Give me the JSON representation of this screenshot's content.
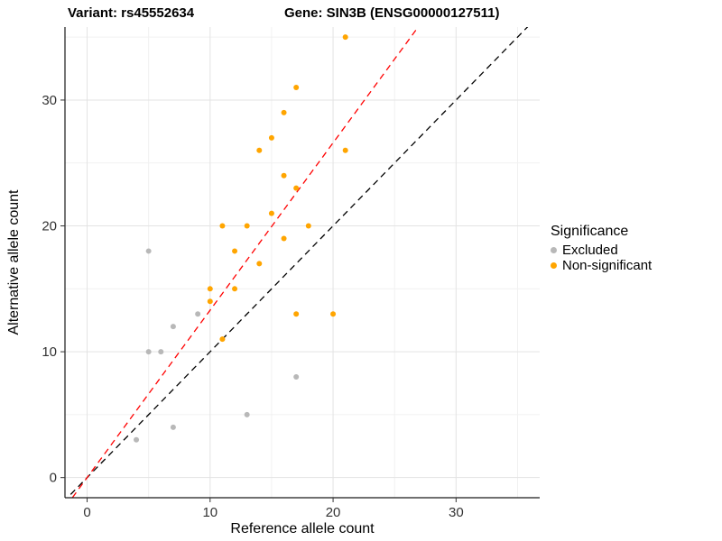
{
  "titles": {
    "left": "Variant: rs45552634",
    "right": "Gene: SIN3B (ENSG00000127511)"
  },
  "legend": {
    "title": "Significance",
    "items": [
      {
        "label": "Excluded",
        "color": "#b8b8b8"
      },
      {
        "label": "Non-significant",
        "color": "#FFA500"
      }
    ]
  },
  "chart_data": {
    "type": "scatter",
    "title": "",
    "xlabel": "Reference allele count",
    "ylabel": "Alternative allele count",
    "xlim": [
      -1.8,
      36.8
    ],
    "ylim": [
      -1.6,
      35.8
    ],
    "xticks": [
      0,
      10,
      20,
      30
    ],
    "yticks": [
      0,
      10,
      20,
      30
    ],
    "minor_ticks": [
      5,
      15,
      25,
      35
    ],
    "grid": true,
    "legend_position": "right",
    "series": [
      {
        "name": "Excluded",
        "color": "#b8b8b8",
        "points": [
          [
            4,
            3
          ],
          [
            5,
            10
          ],
          [
            6,
            10
          ],
          [
            5,
            18
          ],
          [
            7,
            4
          ],
          [
            7,
            12
          ],
          [
            9,
            13
          ],
          [
            13,
            5
          ],
          [
            17,
            8
          ]
        ]
      },
      {
        "name": "Non-significant",
        "color": "#FFA500",
        "points": [
          [
            10,
            14
          ],
          [
            10,
            15
          ],
          [
            11,
            11
          ],
          [
            11,
            20
          ],
          [
            12,
            15
          ],
          [
            12,
            18
          ],
          [
            13,
            20
          ],
          [
            14,
            17
          ],
          [
            14,
            26
          ],
          [
            15,
            21
          ],
          [
            15,
            27
          ],
          [
            16,
            19
          ],
          [
            16,
            24
          ],
          [
            16,
            29
          ],
          [
            17,
            13
          ],
          [
            17,
            23
          ],
          [
            17,
            31
          ],
          [
            18,
            20
          ],
          [
            20,
            13
          ],
          [
            21,
            26
          ],
          [
            21,
            35
          ]
        ]
      }
    ],
    "lines": [
      {
        "name": "identity",
        "slope": 1.0,
        "intercept": 0,
        "color": "#000000",
        "style": "dashed"
      },
      {
        "name": "fit",
        "slope": 1.33,
        "intercept": 0,
        "color": "#FF0000",
        "style": "dashed"
      }
    ]
  }
}
